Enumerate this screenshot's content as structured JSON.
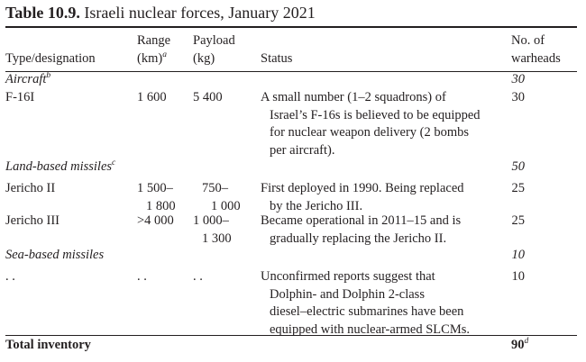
{
  "title": {
    "number": "Table 10.9.",
    "text": "Israeli nuclear forces, January 2021"
  },
  "headers": {
    "type": "Type/designation",
    "range_l1": "Range",
    "range_l2": "(km)",
    "range_sup": "a",
    "payload_l1": "Payload",
    "payload_l2": "(kg)",
    "status": "Status",
    "warheads_l1": "No. of",
    "warheads_l2": "warheads"
  },
  "sections": {
    "aircraft": {
      "label": "Aircraft",
      "sup": "b",
      "warheads": "30"
    },
    "land": {
      "label": "Land-based missiles",
      "sup": "c",
      "warheads": "50"
    },
    "sea": {
      "label": "Sea-based missiles",
      "warheads": "10"
    }
  },
  "rows": {
    "f16": {
      "type": "F-16I",
      "range": "1 600",
      "payload": "5 400",
      "status": [
        "A small number (1–2 squadrons) of",
        "Israel’s F-16s is believed to be equipped",
        "for nuclear weapon delivery (2 bombs",
        "per aircraft)."
      ],
      "warheads": "30"
    },
    "jericho2": {
      "type": "Jericho II",
      "range": [
        "1 500–",
        "1 800"
      ],
      "payload": [
        "750–",
        "1 000"
      ],
      "status": [
        "First deployed in 1990. Being replaced",
        "by the Jericho III."
      ],
      "warheads": "25"
    },
    "jericho3": {
      "type": "Jericho III",
      "range": ">4 000",
      "payload": [
        "1 000–",
        "1 300"
      ],
      "status": [
        "Became operational in 2011–15 and is",
        "gradually replacing the Jericho II."
      ],
      "warheads": "25"
    },
    "slcm": {
      "type": ". .",
      "range": ". .",
      "payload": ". .",
      "status": [
        "Unconfirmed reports suggest that",
        "Dolphin- and Dolphin 2-class",
        "diesel–electric submarines have been",
        "equipped with nuclear-armed SLCMs."
      ],
      "warheads": "10"
    }
  },
  "total": {
    "label": "Total inventory",
    "value": "90",
    "sup": "d"
  }
}
